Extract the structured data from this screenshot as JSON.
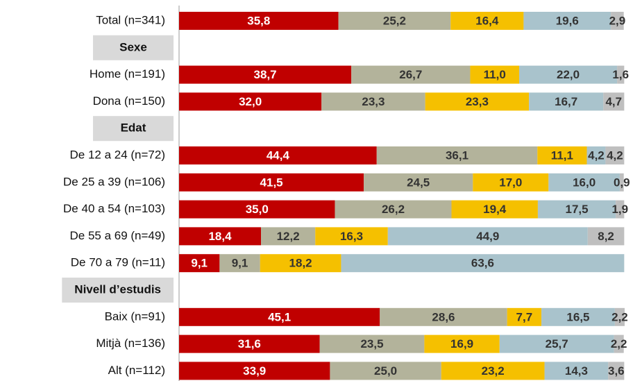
{
  "chart_data": {
    "type": "stacked-bar-horizontal",
    "categories": [
      "Total (n=341)",
      "Sexe",
      "Home (n=191)",
      "Dona (n=150)",
      "Edat",
      "De 12 a 24 (n=72)",
      "De 25 a 39 (n=106)",
      "De 40 a 54 (n=103)",
      "De 55 a 69 (n=49)",
      "De 70 a 79 (n=11)",
      "Nivell d’estudis",
      "Baix (n=91)",
      "Mitjà (n=136)",
      "Alt (n=112)"
    ],
    "series": [
      {
        "color": "#c00000",
        "values": [
          35.8,
          null,
          38.7,
          32.0,
          null,
          44.4,
          41.5,
          35.0,
          18.4,
          9.1,
          null,
          45.1,
          31.6,
          33.9
        ],
        "value_labels": [
          "35,8",
          null,
          "38,7",
          "32,0",
          null,
          "44,4",
          "41,5",
          "35,0",
          "18,4",
          "9,1",
          null,
          "45,1",
          "31,6",
          "33,9"
        ]
      },
      {
        "color": "#b3b39b",
        "values": [
          25.2,
          null,
          26.7,
          23.3,
          null,
          36.1,
          24.5,
          26.2,
          12.2,
          9.1,
          null,
          28.6,
          23.5,
          25.0
        ],
        "value_labels": [
          "25,2",
          null,
          "26,7",
          "23,3",
          null,
          "36,1",
          "24,5",
          "26,2",
          "12,2",
          "9,1",
          null,
          "28,6",
          "23,5",
          "25,0"
        ]
      },
      {
        "color": "#f5c000",
        "values": [
          16.4,
          null,
          11.0,
          23.3,
          null,
          11.1,
          17.0,
          19.4,
          16.3,
          18.2,
          null,
          7.7,
          16.9,
          23.2
        ],
        "value_labels": [
          "16,4",
          null,
          "11,0",
          "23,3",
          null,
          "11,1",
          "17,0",
          "19,4",
          "16,3",
          "18,2",
          null,
          "7,7",
          "16,9",
          "23,2"
        ]
      },
      {
        "color": "#a9c3cc",
        "values": [
          19.6,
          null,
          22.0,
          16.7,
          null,
          4.2,
          16.0,
          17.5,
          44.9,
          63.6,
          null,
          16.5,
          25.7,
          14.3
        ],
        "value_labels": [
          "19,6",
          null,
          "22,0",
          "16,7",
          null,
          "4,2",
          "16,0",
          "17,5",
          "44,9",
          "63,6",
          null,
          "16,5",
          "25,7",
          "14,3"
        ]
      },
      {
        "color": "#bfbfbf",
        "values": [
          2.9,
          null,
          1.6,
          4.7,
          null,
          4.2,
          0.9,
          1.9,
          8.2,
          null,
          null,
          2.2,
          2.2,
          3.6
        ],
        "value_labels": [
          "2,9",
          null,
          "1,6",
          "4,7",
          null,
          "4,2",
          "0,9",
          "1,9",
          "8,2",
          null,
          null,
          "2,2",
          "2,2",
          "3,6"
        ]
      }
    ]
  }
}
